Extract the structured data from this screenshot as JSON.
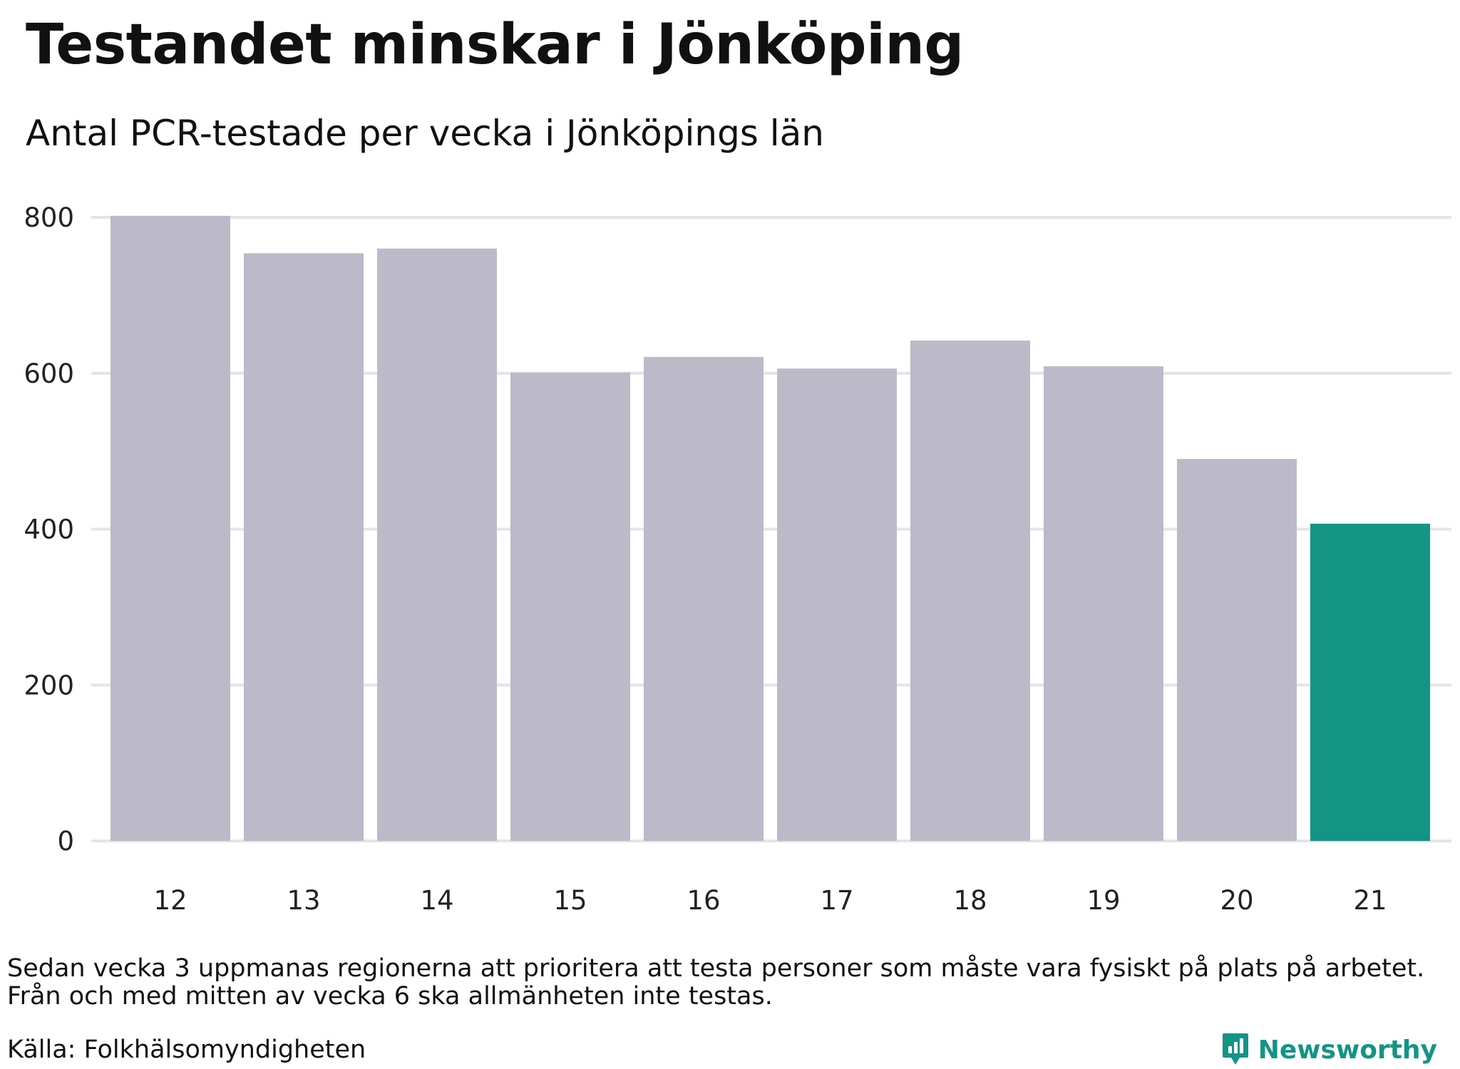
{
  "title": "Testandet minskar i Jönköping",
  "subtitle": "Antal PCR-testade per vecka i Jönköpings län",
  "chart_data": {
    "type": "bar",
    "categories": [
      "12",
      "13",
      "14",
      "15",
      "16",
      "17",
      "18",
      "19",
      "20",
      "21"
    ],
    "values": [
      802,
      754,
      760,
      601,
      621,
      606,
      642,
      609,
      490,
      407
    ],
    "highlight_index": 9,
    "yticks": [
      0,
      200,
      400,
      600,
      800
    ],
    "ylim": [
      0,
      800
    ],
    "grid": true,
    "colors": {
      "bar": "#bcbac8",
      "highlight": "#149485",
      "grid": "#e4e4e8"
    }
  },
  "footnote": {
    "lines": [
      "Sedan vecka 3 uppmanas regionerna att prioritera att testa personer som måste vara fysiskt på plats på arbetet.",
      "Från och med mitten av vecka 6 ska allmänheten inte testas."
    ]
  },
  "source": "Källa: Folkhälsomyndigheten",
  "brand": {
    "name": "Newsworthy",
    "icon": "newsworthy-logo-icon",
    "color": "#149485"
  }
}
